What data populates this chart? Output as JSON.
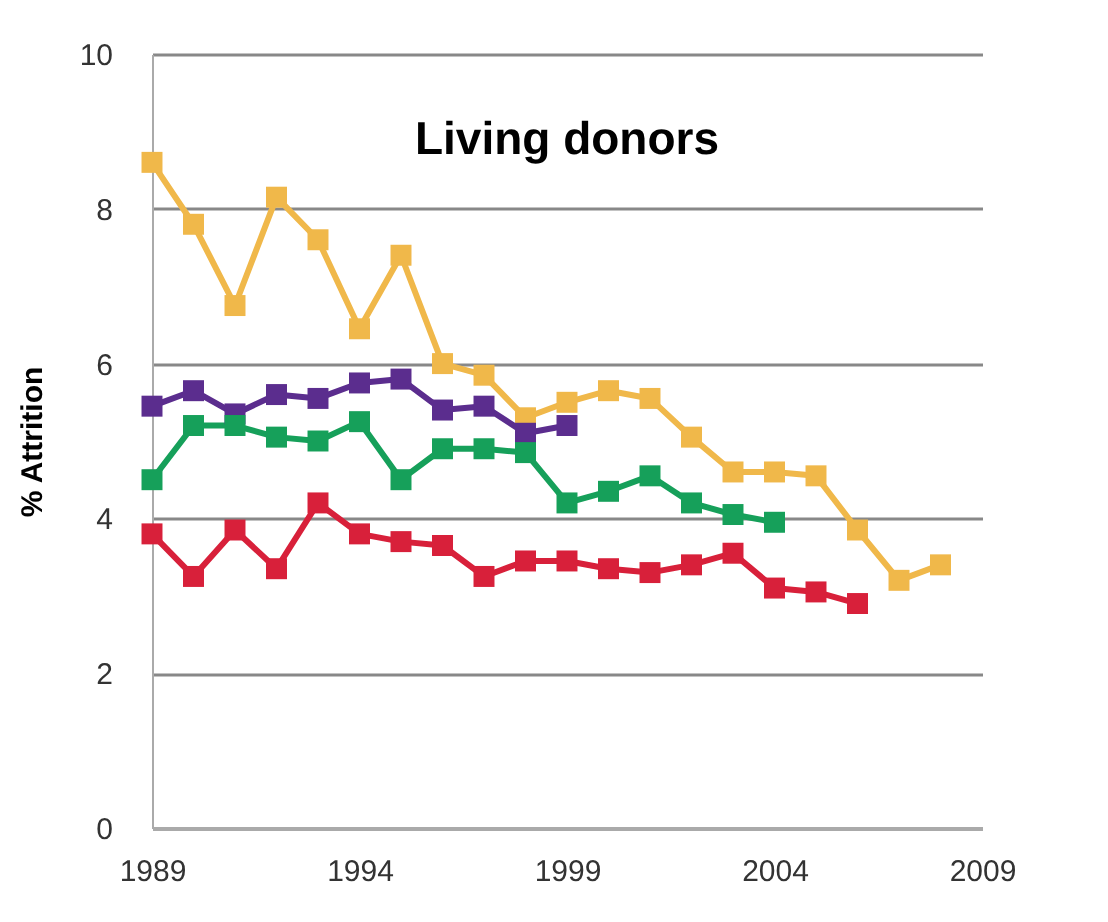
{
  "chart_data": {
    "type": "line",
    "title": "Living donors",
    "ylabel": "% Attrition",
    "xlim": [
      1989,
      2009
    ],
    "xticks": [
      1989,
      1994,
      1999,
      2004,
      2009
    ],
    "ylim": [
      0,
      10
    ],
    "yticks": [
      0,
      2,
      4,
      6,
      8,
      10
    ],
    "grid": "y",
    "marker": "square",
    "line_style": "solid",
    "series": [
      {
        "color": "#f0b84a",
        "x": [
          1989,
          1990,
          1991,
          1992,
          1993,
          1994,
          1995,
          1996,
          1997,
          1998,
          1999,
          2000,
          2001,
          2002,
          2003,
          2004,
          2005,
          2006,
          2007,
          2008
        ],
        "values": [
          8.6,
          7.8,
          6.75,
          8.15,
          7.6,
          6.45,
          7.4,
          6.0,
          5.85,
          5.3,
          5.5,
          5.65,
          5.55,
          5.05,
          4.6,
          4.6,
          4.55,
          3.85,
          3.2,
          3.4
        ]
      },
      {
        "color": "#5b2d8e",
        "x": [
          1989,
          1990,
          1991,
          1992,
          1993,
          1994,
          1995,
          1996,
          1997,
          1998,
          1999
        ],
        "values": [
          5.45,
          5.65,
          5.35,
          5.6,
          5.55,
          5.75,
          5.8,
          5.4,
          5.45,
          5.1,
          5.2
        ]
      },
      {
        "color": "#16a05a",
        "x": [
          1989,
          1990,
          1991,
          1992,
          1993,
          1994,
          1995,
          1996,
          1997,
          1998,
          1999,
          2000,
          2001,
          2002,
          2003,
          2004
        ],
        "values": [
          4.5,
          5.2,
          5.2,
          5.05,
          5.0,
          5.25,
          4.5,
          4.9,
          4.9,
          4.85,
          4.2,
          4.35,
          4.55,
          4.2,
          4.05,
          3.95
        ]
      },
      {
        "color": "#d8203a",
        "x": [
          1989,
          1990,
          1991,
          1992,
          1993,
          1994,
          1995,
          1996,
          1997,
          1998,
          1999,
          2000,
          2001,
          2002,
          2003,
          2004,
          2005,
          2006
        ],
        "values": [
          3.8,
          3.25,
          3.85,
          3.35,
          4.2,
          3.8,
          3.7,
          3.65,
          3.25,
          3.45,
          3.45,
          3.35,
          3.3,
          3.4,
          3.55,
          3.1,
          3.05,
          2.9
        ]
      }
    ]
  }
}
